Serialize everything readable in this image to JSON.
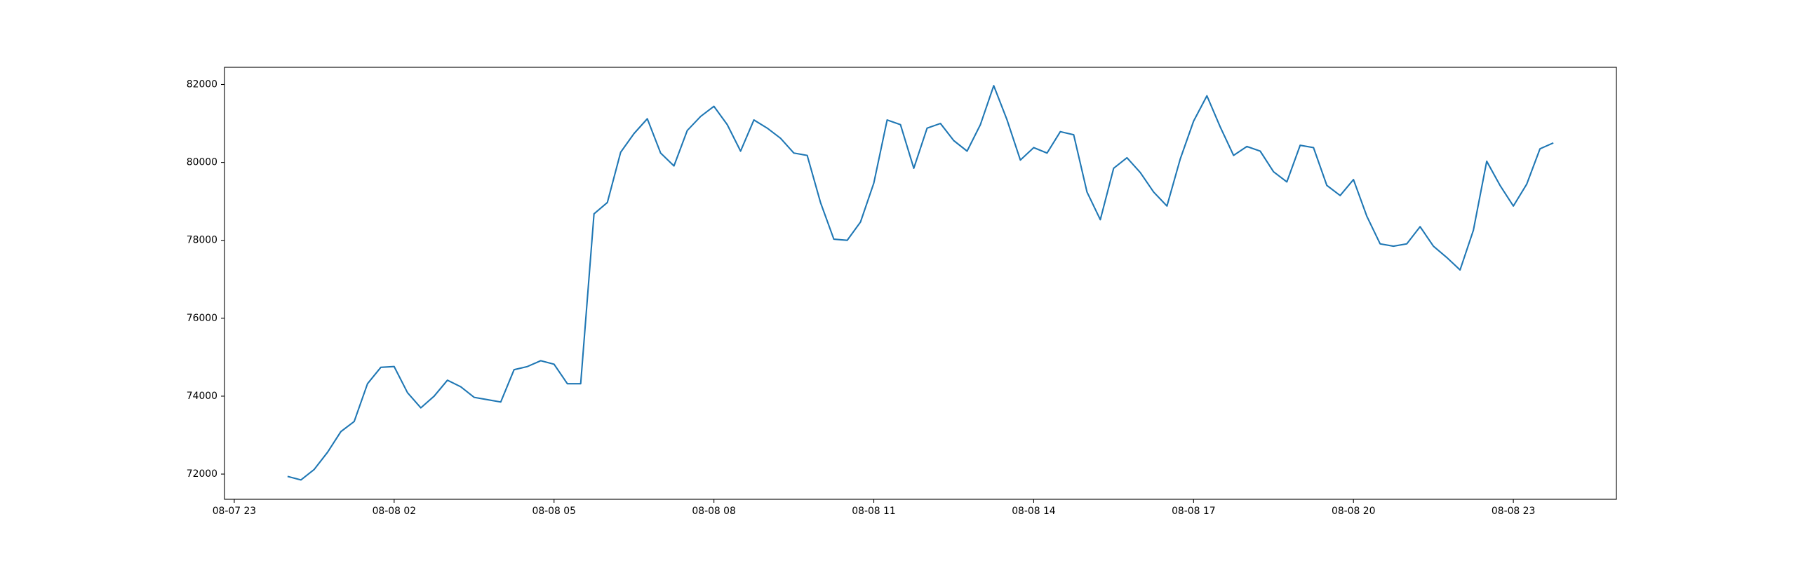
{
  "chart_data": {
    "type": "line",
    "x": [
      "08-08 00:00",
      "08-08 00:15",
      "08-08 00:30",
      "08-08 00:45",
      "08-08 01:00",
      "08-08 01:15",
      "08-08 01:30",
      "08-08 01:45",
      "08-08 02:00",
      "08-08 02:15",
      "08-08 02:30",
      "08-08 02:45",
      "08-08 03:00",
      "08-08 03:15",
      "08-08 03:30",
      "08-08 03:45",
      "08-08 04:00",
      "08-08 04:15",
      "08-08 04:30",
      "08-08 04:45",
      "08-08 05:00",
      "08-08 05:15",
      "08-08 05:30",
      "08-08 05:45",
      "08-08 06:00",
      "08-08 06:15",
      "08-08 06:30",
      "08-08 06:45",
      "08-08 07:00",
      "08-08 07:15",
      "08-08 07:30",
      "08-08 07:45",
      "08-08 08:00",
      "08-08 08:15",
      "08-08 08:30",
      "08-08 08:45",
      "08-08 09:00",
      "08-08 09:15",
      "08-08 09:30",
      "08-08 09:45",
      "08-08 10:00",
      "08-08 10:15",
      "08-08 10:30",
      "08-08 10:45",
      "08-08 11:00",
      "08-08 11:15",
      "08-08 11:30",
      "08-08 11:45",
      "08-08 12:00",
      "08-08 12:15",
      "08-08 12:30",
      "08-08 12:45",
      "08-08 13:00",
      "08-08 13:15",
      "08-08 13:30",
      "08-08 13:45",
      "08-08 14:00",
      "08-08 14:15",
      "08-08 14:30",
      "08-08 14:45",
      "08-08 15:00",
      "08-08 15:15",
      "08-08 15:30",
      "08-08 15:45",
      "08-08 16:00",
      "08-08 16:15",
      "08-08 16:30",
      "08-08 16:45",
      "08-08 17:00",
      "08-08 17:15",
      "08-08 17:30",
      "08-08 17:45",
      "08-08 18:00",
      "08-08 18:15",
      "08-08 18:30",
      "08-08 18:45",
      "08-08 19:00",
      "08-08 19:15",
      "08-08 19:30",
      "08-08 19:45",
      "08-08 20:00",
      "08-08 20:15",
      "08-08 20:30",
      "08-08 20:45",
      "08-08 21:00",
      "08-08 21:15",
      "08-08 21:30",
      "08-08 21:45",
      "08-08 22:00",
      "08-08 22:15",
      "08-08 22:30",
      "08-08 22:45",
      "08-08 23:00",
      "08-08 23:15",
      "08-08 23:30",
      "08-08 23:45"
    ],
    "series": [
      {
        "color": "#1f77b4",
        "values": [
          71940,
          71850,
          72120,
          72560,
          73090,
          73350,
          74320,
          74740,
          74760,
          74090,
          73700,
          74000,
          74410,
          74240,
          73970,
          73910,
          73850,
          74680,
          74760,
          74910,
          74820,
          74320,
          74320,
          78680,
          78970,
          80260,
          80740,
          81120,
          80240,
          79910,
          80820,
          81180,
          81440,
          80970,
          80290,
          81090,
          80880,
          80620,
          80240,
          80180,
          78970,
          78030,
          78000,
          78470,
          79470,
          81090,
          80970,
          79850,
          80880,
          81000,
          80560,
          80290,
          80970,
          81970,
          81090,
          80060,
          80380,
          80240,
          80790,
          80710,
          79240,
          78530,
          79850,
          80120,
          79740,
          79240,
          78880,
          80090,
          81060,
          81710,
          80910,
          80180,
          80410,
          80290,
          79760,
          79500,
          80440,
          80380,
          79410,
          79150,
          79560,
          78620,
          77910,
          77850,
          77910,
          78350,
          77850,
          77560,
          77240,
          78260,
          80030,
          79410,
          78880,
          79440,
          80350,
          80500
        ]
      }
    ],
    "xlim": [
      "08-07 22:49",
      "08-09 00:56"
    ],
    "xticks": [
      "08-07 23",
      "08-08 02",
      "08-08 05",
      "08-08 08",
      "08-08 11",
      "08-08 14",
      "08-08 17",
      "08-08 20",
      "08-08 23"
    ],
    "ylim": [
      71353,
      82441
    ],
    "yticks": [
      72000,
      74000,
      76000,
      78000,
      80000,
      82000
    ],
    "grid": false
  }
}
